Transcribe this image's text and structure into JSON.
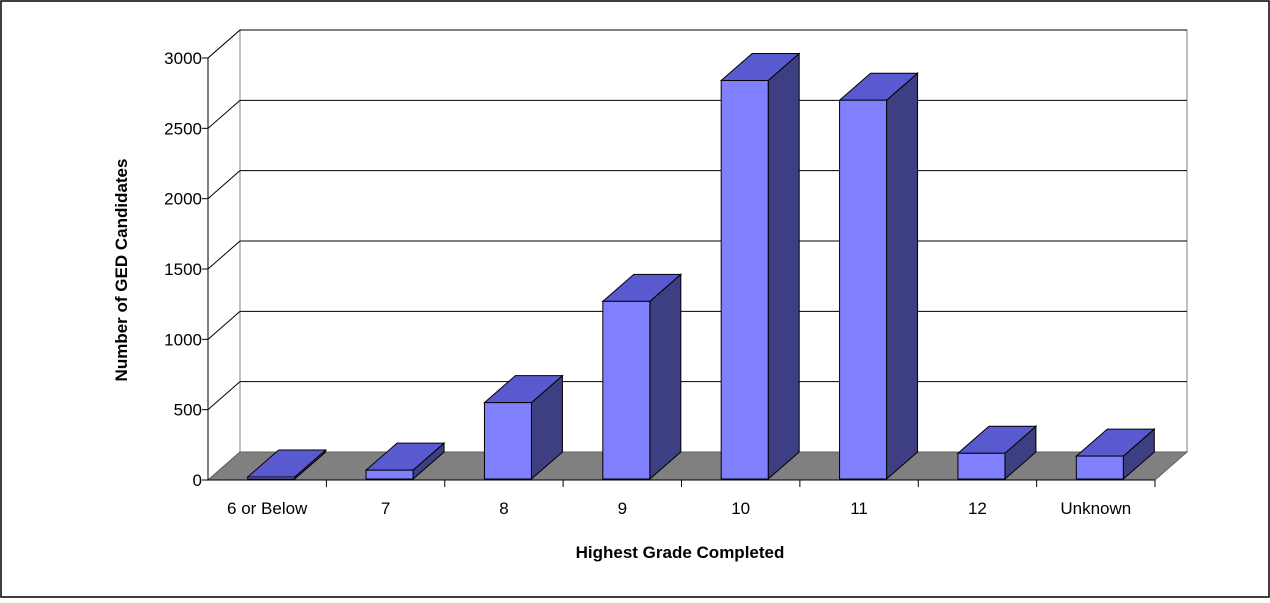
{
  "chart_data": {
    "type": "bar",
    "style": "3d",
    "title": "",
    "xlabel": "Highest Grade Completed",
    "ylabel": "Number of GED Candidates",
    "categories": [
      "6 or Below",
      "7",
      "8",
      "9",
      "10",
      "11",
      "12",
      "Unknown"
    ],
    "values": [
      10,
      70,
      550,
      1270,
      2840,
      2700,
      190,
      170
    ],
    "ylim": [
      0,
      3000
    ],
    "yticks": [
      "0",
      "500",
      "1000",
      "1500",
      "2000",
      "2500",
      "3000"
    ],
    "grid": true,
    "legend": "none",
    "colors": {
      "bar_front": "#8080ff",
      "bar_top": "#5a5ad0",
      "bar_side": "#3e3e82",
      "floor": "#808080",
      "outline": "#000000",
      "gridline": "#000000"
    }
  }
}
